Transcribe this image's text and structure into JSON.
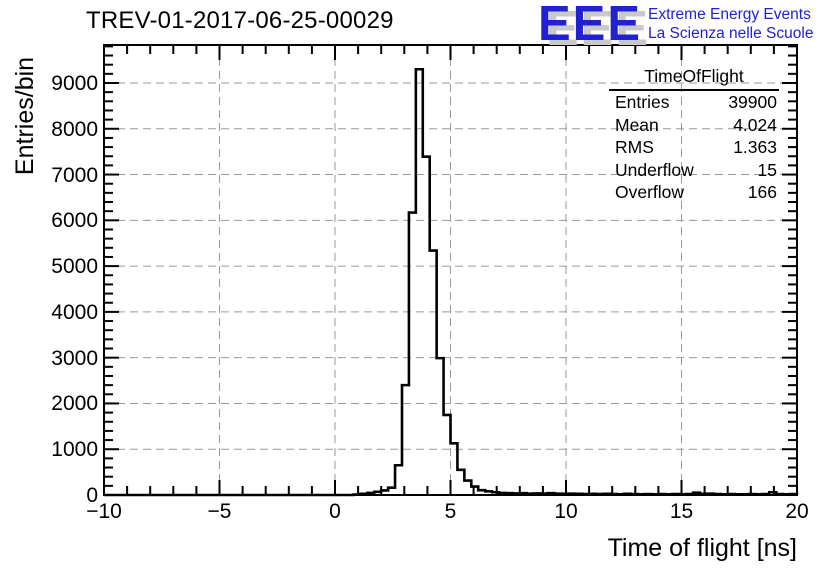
{
  "header": {
    "title": "TREV-01-2017-06-25-00029"
  },
  "logo": {
    "letters": "EEE",
    "line1": "Extreme Energy Events",
    "line2": "La Scienza nelle Scuole",
    "blue": "#2121d1",
    "shadow": "#c9c9c9"
  },
  "stats": {
    "title": "TimeOfFlight",
    "rows": [
      [
        "Entries",
        "39900"
      ],
      [
        "Mean",
        "4.024"
      ],
      [
        "RMS",
        "1.363"
      ],
      [
        "Underflow",
        "15"
      ],
      [
        "Overflow",
        "166"
      ]
    ]
  },
  "chart_data": {
    "type": "bar",
    "style": "step-histogram",
    "title": "TREV-01-2017-06-25-00029",
    "xlabel": "Time of flight [ns]",
    "ylabel": "Entries/bin",
    "xlim": [
      -10,
      20
    ],
    "ylim": [
      0,
      9830
    ],
    "grid": true,
    "x_major_ticks": [
      -10,
      -5,
      0,
      5,
      10,
      15,
      20
    ],
    "x_tick_labels": [
      "−10",
      "−5",
      "0",
      "5",
      "10",
      "15",
      "20"
    ],
    "x_minor_step": 1,
    "y_major_ticks": [
      0,
      1000,
      2000,
      3000,
      4000,
      5000,
      6000,
      7000,
      8000,
      9000
    ],
    "y_tick_labels": [
      "0",
      "1000",
      "2000",
      "3000",
      "4000",
      "5000",
      "6000",
      "7000",
      "8000",
      "9000"
    ],
    "y_minor_step": 200,
    "grid_x_values": [
      -5,
      0,
      5,
      10,
      15
    ],
    "line_color": "#000000",
    "grid_color": "#9a9a9a",
    "bins": {
      "start": -10,
      "width": 0.3,
      "counts": [
        0,
        0,
        0,
        0,
        0,
        0,
        0,
        0,
        0,
        0,
        0,
        0,
        0,
        0,
        0,
        0,
        0,
        0,
        0,
        0,
        0,
        0,
        0,
        0,
        0,
        0,
        0,
        0,
        0,
        0,
        0,
        0,
        0,
        0,
        0,
        0,
        10,
        25,
        45,
        70,
        100,
        160,
        650,
        2400,
        6170,
        9300,
        7390,
        5340,
        2990,
        1750,
        1130,
        550,
        315,
        185,
        105,
        80,
        60,
        45,
        40,
        35,
        40,
        30,
        35,
        30,
        40,
        30,
        25,
        30,
        25,
        20,
        25,
        20,
        25,
        20,
        15,
        25,
        20,
        15,
        20,
        15,
        20,
        15,
        20,
        15,
        20,
        50,
        25,
        30,
        20,
        15,
        20,
        15,
        15,
        20,
        15,
        20,
        60,
        20,
        15,
        20
      ]
    }
  }
}
